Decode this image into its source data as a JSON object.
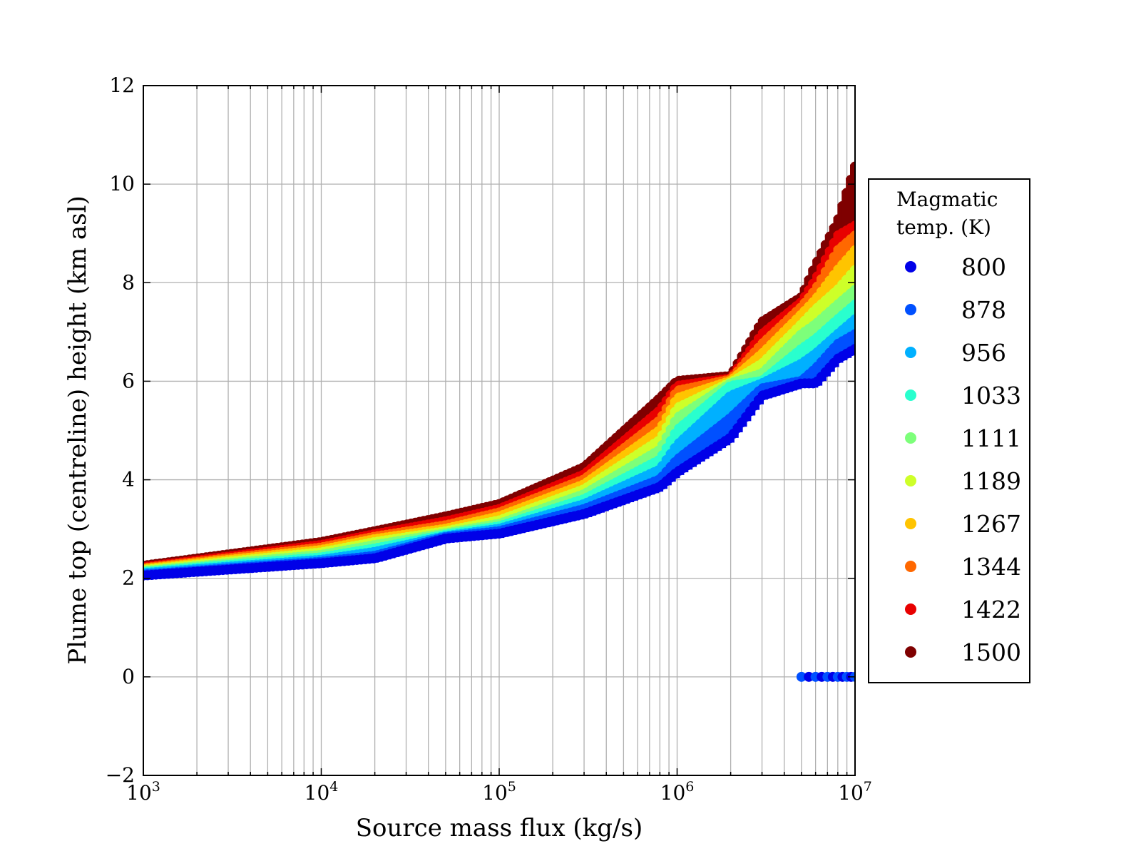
{
  "chart_data": {
    "type": "scatter",
    "xlabel": "Source mass flux (kg/s)",
    "ylabel": "Plume top (centreline) height (km asl)",
    "xscale": "log",
    "xlim": [
      1000,
      10000000
    ],
    "ylim": [
      -2,
      12
    ],
    "grid": true,
    "x_tick_labels": [
      {
        "value": 1000,
        "base": "10",
        "exp": "3"
      },
      {
        "value": 10000,
        "base": "10",
        "exp": "4"
      },
      {
        "value": 100000,
        "base": "10",
        "exp": "5"
      },
      {
        "value": 1000000,
        "base": "10",
        "exp": "6"
      },
      {
        "value": 10000000,
        "base": "10",
        "exp": "7"
      }
    ],
    "y_ticks": [
      -2,
      0,
      2,
      4,
      6,
      8,
      10,
      12
    ],
    "y_tick_labels": [
      "−2",
      "0",
      "2",
      "4",
      "6",
      "8",
      "10",
      "12"
    ],
    "legend": {
      "title_lines": [
        "Magmatic",
        "temp. (K)"
      ],
      "placement": "outside-right"
    },
    "series": [
      {
        "name": "800",
        "color": "#0000e8",
        "x": [
          1000,
          10000,
          20000,
          50000,
          100000,
          300000,
          800000,
          1000000,
          2000000,
          3000000,
          5000000,
          6000000,
          8000000,
          10000000
        ],
        "y": [
          2.1,
          2.35,
          2.45,
          2.85,
          2.95,
          3.35,
          3.9,
          4.2,
          4.9,
          5.75,
          6.0,
          6.0,
          6.5,
          6.7
        ]
      },
      {
        "name": "878",
        "color": "#0050ff",
        "x": [
          1000,
          10000,
          20000,
          50000,
          100000,
          300000,
          800000,
          1000000,
          2000000,
          3000000,
          5000000,
          6000000,
          8000000,
          10000000
        ],
        "y": [
          2.12,
          2.38,
          2.5,
          2.88,
          3.0,
          3.45,
          4.05,
          4.45,
          5.3,
          5.9,
          6.05,
          6.3,
          6.8,
          7.0
        ]
      },
      {
        "name": "956",
        "color": "#00b0ff",
        "x": [
          1000,
          10000,
          20000,
          50000,
          100000,
          300000,
          800000,
          1000000,
          2000000,
          3000000,
          5000000,
          6000000,
          8000000,
          10000000
        ],
        "y": [
          2.15,
          2.42,
          2.58,
          2.9,
          3.05,
          3.55,
          4.25,
          4.75,
          5.75,
          6.0,
          6.4,
          6.6,
          7.0,
          7.3
        ]
      },
      {
        "name": "1033",
        "color": "#29ffce",
        "x": [
          1000,
          10000,
          20000,
          50000,
          100000,
          300000,
          800000,
          1000000,
          2000000,
          3000000,
          5000000,
          6000000,
          8000000,
          10000000
        ],
        "y": [
          2.17,
          2.47,
          2.65,
          2.93,
          3.1,
          3.65,
          4.45,
          5.05,
          5.95,
          6.05,
          6.7,
          6.9,
          7.3,
          7.6
        ]
      },
      {
        "name": "1111",
        "color": "#7dff7a",
        "x": [
          1000,
          10000,
          20000,
          50000,
          100000,
          300000,
          800000,
          1000000,
          2000000,
          3000000,
          5000000,
          6000000,
          8000000,
          10000000
        ],
        "y": [
          2.19,
          2.52,
          2.72,
          2.96,
          3.15,
          3.75,
          4.65,
          5.3,
          6.0,
          6.2,
          7.0,
          7.2,
          7.6,
          7.9
        ]
      },
      {
        "name": "1189",
        "color": "#ceff29",
        "x": [
          1000,
          10000,
          20000,
          50000,
          100000,
          300000,
          800000,
          1000000,
          2000000,
          3000000,
          5000000,
          6000000,
          8000000,
          10000000
        ],
        "y": [
          2.21,
          2.57,
          2.78,
          3.0,
          3.22,
          3.85,
          4.85,
          5.5,
          6.02,
          6.4,
          7.2,
          7.5,
          7.9,
          8.3
        ]
      },
      {
        "name": "1267",
        "color": "#ffc400",
        "x": [
          1000,
          10000,
          20000,
          50000,
          100000,
          300000,
          800000,
          1000000,
          2000000,
          3000000,
          5000000,
          6000000,
          8000000,
          10000000
        ],
        "y": [
          2.23,
          2.62,
          2.84,
          3.05,
          3.3,
          3.95,
          5.05,
          5.7,
          6.05,
          6.6,
          7.4,
          7.7,
          8.3,
          8.7
        ]
      },
      {
        "name": "1344",
        "color": "#ff6800",
        "x": [
          1000,
          10000,
          20000,
          50000,
          100000,
          300000,
          800000,
          1000000,
          2000000,
          3000000,
          5000000,
          6000000,
          8000000,
          10000000
        ],
        "y": [
          2.25,
          2.67,
          2.89,
          3.12,
          3.38,
          4.05,
          5.25,
          5.85,
          6.08,
          6.8,
          7.55,
          7.9,
          8.7,
          9.0
        ]
      },
      {
        "name": "1422",
        "color": "#e80000",
        "x": [
          1000,
          10000,
          20000,
          50000,
          100000,
          300000,
          800000,
          1000000,
          2000000,
          3000000,
          5000000,
          6000000,
          8000000,
          10000000
        ],
        "y": [
          2.27,
          2.72,
          2.94,
          3.2,
          3.45,
          4.15,
          5.45,
          5.95,
          6.1,
          7.0,
          7.65,
          8.1,
          9.0,
          9.2
        ]
      },
      {
        "name": "1500",
        "color": "#7f0000",
        "x": [
          1000,
          10000,
          20000,
          50000,
          100000,
          300000,
          800000,
          1000000,
          2000000,
          3000000,
          5000000,
          6000000,
          8000000,
          10000000
        ],
        "y": [
          2.3,
          2.78,
          3.0,
          3.3,
          3.55,
          4.3,
          5.7,
          6.05,
          6.15,
          7.25,
          7.75,
          8.4,
          9.3,
          10.4
        ]
      }
    ],
    "zero_height_points": {
      "x": [
        5000000,
        5500000,
        6000000,
        6500000,
        7000000,
        7500000,
        8000000,
        8500000,
        9000000,
        9500000,
        10000000
      ],
      "y": 0,
      "colors": [
        "#0050ff",
        "#0000e8"
      ]
    }
  }
}
